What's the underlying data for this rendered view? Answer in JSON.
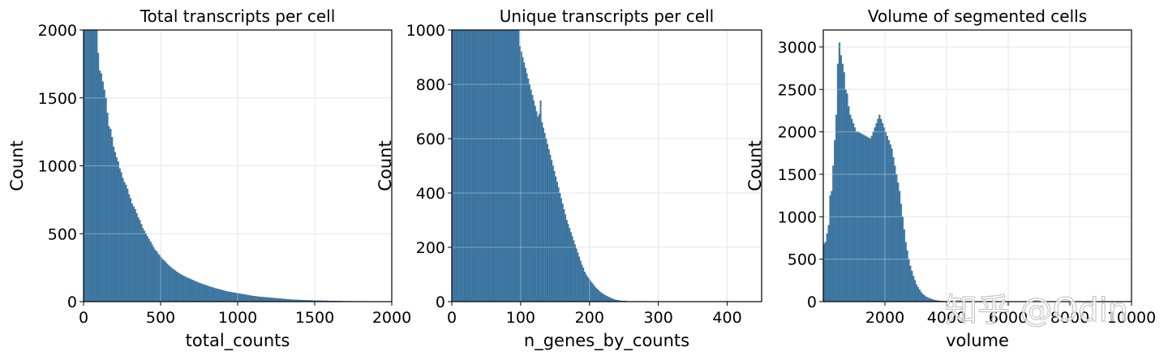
{
  "watermark": "知乎 @Odin",
  "chart_data": [
    {
      "type": "bar",
      "title": "Total transcripts per cell",
      "xlabel": "total_counts",
      "ylabel": "Count",
      "xlim": [
        0,
        2000
      ],
      "ylim": [
        0,
        2000
      ],
      "xticks": [
        "0",
        "500",
        "1000",
        "1500",
        "2000"
      ],
      "yticks": [
        "0",
        "500",
        "1000",
        "1500",
        "2000"
      ],
      "grid": true,
      "bar_color": "#3a77a4",
      "bins": {
        "start": 0,
        "width": 10
      },
      "values": [
        2000,
        2000,
        2000,
        2000,
        2000,
        2000,
        2000,
        2000,
        2000,
        1830,
        1700,
        1680,
        1620,
        1560,
        1500,
        1390,
        1290,
        1270,
        1210,
        1140,
        1100,
        1060,
        1030,
        980,
        950,
        910,
        880,
        860,
        830,
        790,
        760,
        720,
        700,
        680,
        650,
        620,
        600,
        570,
        540,
        520,
        500,
        480,
        460,
        440,
        420,
        400,
        380,
        370,
        350,
        340,
        325,
        310,
        300,
        288,
        275,
        265,
        255,
        245,
        236,
        228,
        220,
        212,
        205,
        198,
        192,
        186,
        180,
        175,
        170,
        165,
        160,
        155,
        150,
        145,
        140,
        136,
        132,
        128,
        124,
        120,
        116,
        112,
        108,
        105,
        102,
        98,
        95,
        92,
        89,
        86,
        83,
        80,
        77,
        74,
        72,
        70,
        68,
        66,
        64,
        62,
        60,
        58,
        56,
        54,
        52,
        50,
        48,
        46,
        44,
        42,
        40,
        39,
        38,
        36,
        35,
        34,
        33,
        32,
        31,
        30,
        29,
        28,
        27,
        26,
        25,
        24,
        23,
        22,
        21,
        20,
        19,
        18,
        17,
        16,
        15,
        14,
        14,
        13,
        13,
        12,
        12,
        11,
        11,
        10,
        10,
        10,
        9,
        9,
        9,
        8,
        8,
        8,
        7,
        7,
        7,
        6,
        6,
        6,
        6,
        5,
        5,
        5,
        5,
        4,
        4,
        4,
        4,
        4,
        3,
        3,
        3,
        3,
        3,
        3,
        2,
        2,
        2,
        2,
        2,
        2,
        2,
        2,
        2,
        1,
        1,
        1,
        1,
        1,
        1,
        1,
        1,
        1,
        1,
        1,
        1,
        1,
        1,
        1,
        1,
        1,
        1,
        1,
        1,
        1
      ]
    },
    {
      "type": "bar",
      "title": "Unique transcripts per cell",
      "xlabel": "n_genes_by_counts",
      "ylabel": "Count",
      "xlim": [
        0,
        450
      ],
      "ylim": [
        0,
        1000
      ],
      "xticks": [
        "0",
        "100",
        "200",
        "300",
        "400"
      ],
      "yticks": [
        "0",
        "200",
        "400",
        "600",
        "800",
        "1000"
      ],
      "grid": true,
      "bar_color": "#3a77a4",
      "bins": {
        "start": 0,
        "width": 2
      },
      "values": [
        1000,
        1000,
        1000,
        1000,
        1000,
        1000,
        1000,
        1000,
        1000,
        1000,
        1000,
        1000,
        1000,
        1000,
        1000,
        1000,
        1000,
        1000,
        1000,
        1000,
        1000,
        1000,
        1000,
        1000,
        1000,
        1000,
        1000,
        1000,
        1000,
        1000,
        1000,
        1000,
        1000,
        1000,
        1000,
        1000,
        1000,
        1000,
        1000,
        1000,
        1000,
        1000,
        1000,
        1000,
        1000,
        1000,
        1000,
        1000,
        1000,
        940,
        920,
        900,
        880,
        860,
        840,
        820,
        800,
        780,
        760,
        740,
        720,
        700,
        680,
        690,
        740,
        660,
        640,
        620,
        600,
        580,
        560,
        540,
        520,
        500,
        480,
        460,
        440,
        420,
        400,
        380,
        360,
        340,
        320,
        300,
        285,
        270,
        255,
        240,
        225,
        210,
        195,
        180,
        165,
        150,
        135,
        125,
        110,
        100,
        92,
        85,
        78,
        71,
        65,
        58,
        52,
        47,
        42,
        37,
        33,
        29,
        26,
        23,
        20,
        18,
        16,
        13,
        11,
        9,
        7,
        6,
        5,
        4,
        3,
        3,
        2,
        2,
        2,
        1,
        1,
        1,
        1,
        1,
        1,
        1,
        1,
        1,
        1,
        1,
        1
      ]
    },
    {
      "type": "bar",
      "title": "Volume of segmented cells",
      "xlabel": "volume",
      "ylabel": "Count",
      "xlim": [
        0,
        10000
      ],
      "ylim": [
        0,
        3200
      ],
      "xticks": [
        "2000",
        "4000",
        "6000",
        "8000",
        "10000"
      ],
      "yticks": [
        "0",
        "500",
        "1000",
        "1500",
        "2000",
        "2500",
        "3000"
      ],
      "grid": true,
      "bar_color": "#3a77a4",
      "bins": {
        "start": 0,
        "width": 50
      },
      "values": [
        680,
        700,
        800,
        900,
        1250,
        1300,
        1600,
        1900,
        2200,
        2800,
        3050,
        2900,
        2800,
        2700,
        2500,
        2450,
        2300,
        2200,
        2150,
        2100,
        2050,
        2000,
        2000,
        1990,
        1980,
        1970,
        1960,
        1950,
        1940,
        1930,
        1920,
        1950,
        2000,
        2050,
        2100,
        2150,
        2200,
        2150,
        2100,
        2050,
        2000,
        1950,
        1900,
        1850,
        1800,
        1700,
        1600,
        1500,
        1400,
        1300,
        1150,
        1000,
        850,
        700,
        600,
        500,
        420,
        360,
        300,
        250,
        200,
        170,
        140,
        110,
        90,
        75,
        60,
        50,
        42,
        35,
        28,
        22,
        18,
        14,
        11,
        9,
        7,
        6,
        5,
        4,
        3,
        2,
        2,
        1,
        1,
        1,
        1,
        1
      ]
    }
  ]
}
